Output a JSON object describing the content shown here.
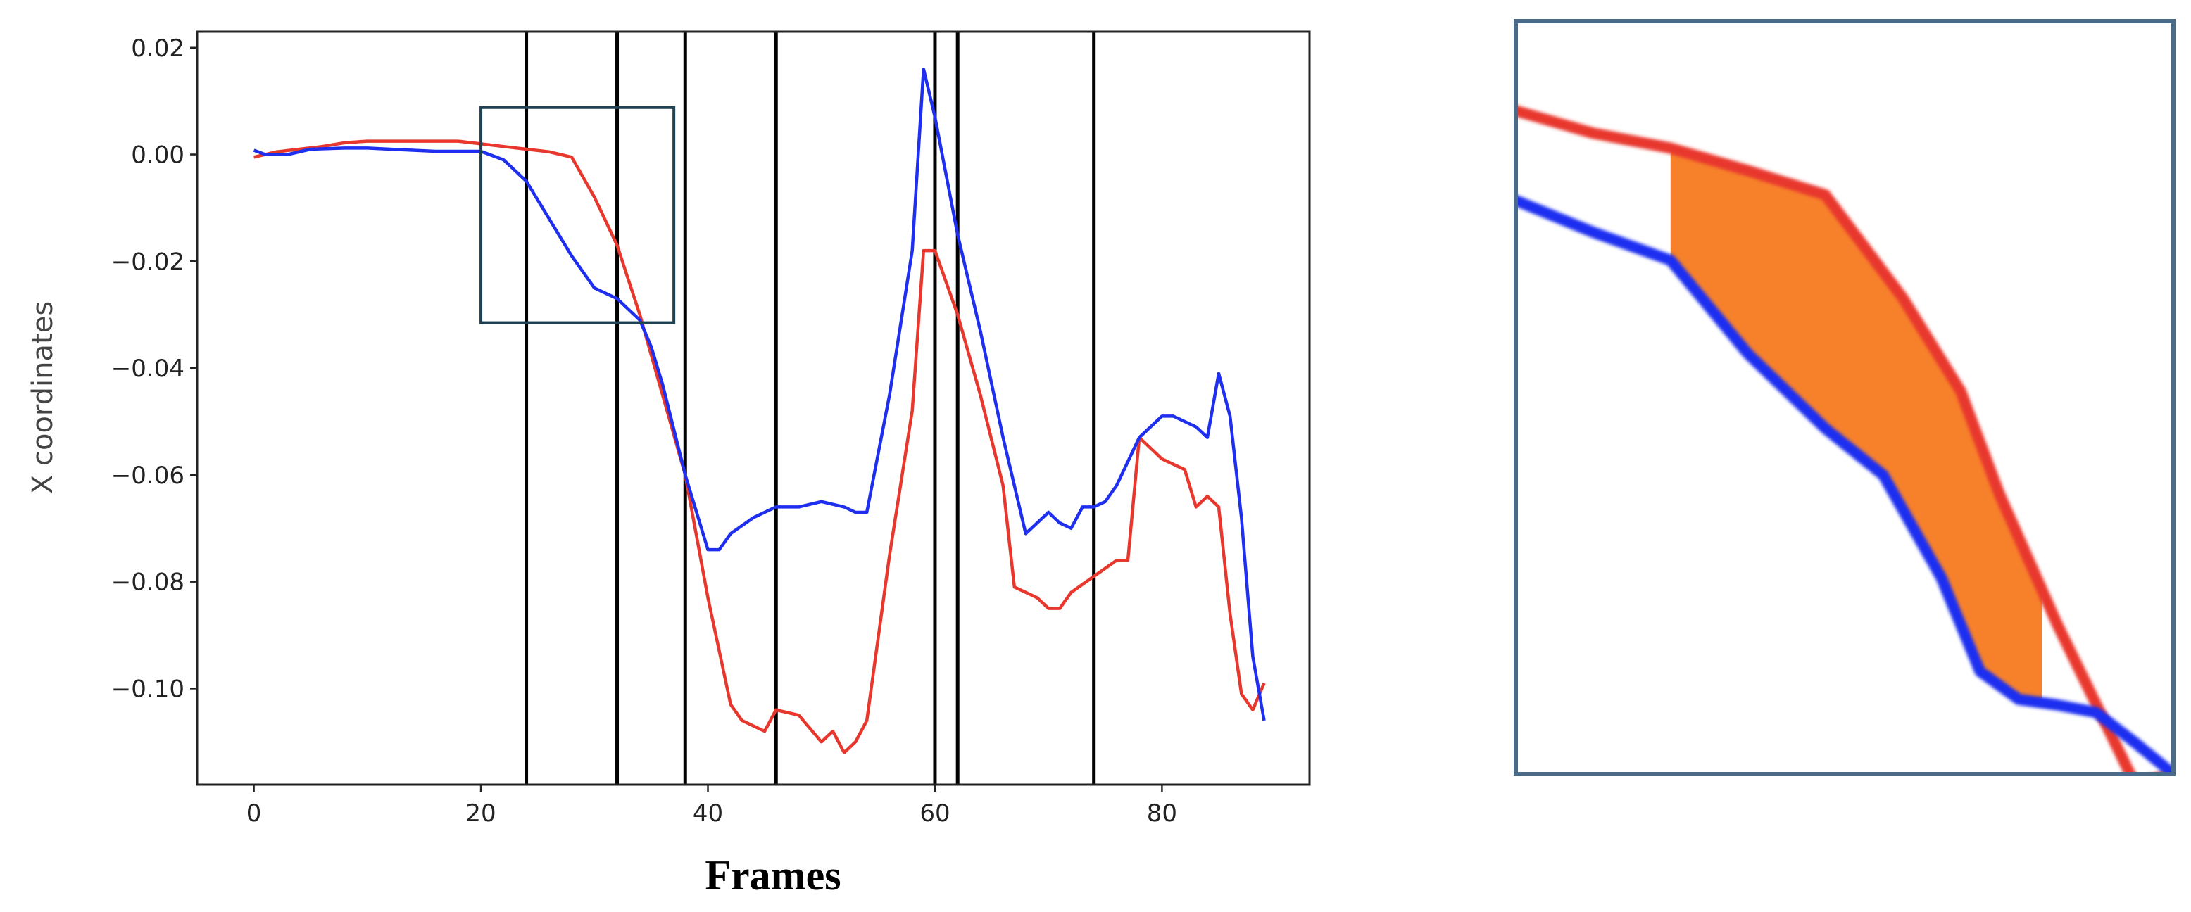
{
  "chart_data": [
    {
      "type": "line",
      "title": "",
      "xlabel": "Frames",
      "ylabel": "X coordinates",
      "xlim": [
        -5,
        93
      ],
      "ylim": [
        -0.118,
        0.023
      ],
      "xticks": [
        0,
        20,
        40,
        60,
        80
      ],
      "xtick_labels": [
        "0",
        "20",
        "40",
        "60",
        "80"
      ],
      "yticks": [
        0.02,
        0.0,
        -0.02,
        -0.04,
        -0.06,
        -0.08,
        -0.1
      ],
      "ytick_labels": [
        "0.02",
        "0.00",
        "−0.02",
        "−0.04",
        "−0.06",
        "−0.08",
        "−0.10"
      ],
      "grid": false,
      "legend": "none",
      "vertical_lines_x": [
        24,
        32,
        38,
        46,
        60,
        62,
        74
      ],
      "highlight_box": {
        "x": [
          20,
          37
        ],
        "y": [
          -0.0315,
          0.0088
        ]
      },
      "series": [
        {
          "color": "#e8382e",
          "x": [
            0,
            2,
            4,
            6,
            8,
            10,
            12,
            14,
            16,
            18,
            20,
            22,
            24,
            26,
            28,
            30,
            32,
            34,
            36,
            38,
            40,
            42,
            43,
            45,
            46,
            48,
            50,
            51,
            52,
            53,
            54,
            56,
            58,
            59,
            60,
            62,
            64,
            66,
            67,
            69,
            70,
            71,
            72,
            74,
            76,
            77,
            78,
            80,
            82,
            83,
            84,
            85,
            86,
            87,
            88,
            89
          ],
          "values": [
            -0.0005,
            0.0005,
            0.001,
            0.0015,
            0.0022,
            0.0025,
            0.0025,
            0.0025,
            0.0025,
            0.0025,
            0.002,
            0.0015,
            0.001,
            0.0005,
            -0.0005,
            -0.008,
            -0.017,
            -0.03,
            -0.045,
            -0.06,
            -0.083,
            -0.103,
            -0.106,
            -0.108,
            -0.104,
            -0.105,
            -0.11,
            -0.108,
            -0.112,
            -0.11,
            -0.106,
            -0.075,
            -0.048,
            -0.018,
            -0.018,
            -0.03,
            -0.045,
            -0.062,
            -0.081,
            -0.083,
            -0.085,
            -0.085,
            -0.082,
            -0.079,
            -0.076,
            -0.076,
            -0.053,
            -0.057,
            -0.059,
            -0.066,
            -0.064,
            -0.066,
            -0.086,
            -0.101,
            -0.104,
            -0.099
          ]
        },
        {
          "color": "#1e2ff0",
          "x": [
            0,
            1,
            3,
            5,
            8,
            10,
            12,
            14,
            16,
            18,
            20,
            22,
            24,
            26,
            28,
            30,
            32,
            34,
            35,
            36,
            38,
            40,
            41,
            42,
            44,
            46,
            48,
            50,
            52,
            53,
            54,
            56,
            58,
            59,
            60,
            62,
            64,
            66,
            68,
            69,
            70,
            71,
            72,
            73,
            74,
            75,
            76,
            78,
            80,
            81,
            82,
            83,
            84,
            85,
            86,
            87,
            88,
            89
          ],
          "values": [
            0.0008,
            0.0,
            0.0,
            0.001,
            0.0012,
            0.0012,
            0.001,
            0.0008,
            0.0006,
            0.0006,
            0.0006,
            -0.001,
            -0.005,
            -0.012,
            -0.019,
            -0.025,
            -0.027,
            -0.031,
            -0.036,
            -0.043,
            -0.06,
            -0.074,
            -0.074,
            -0.071,
            -0.068,
            -0.066,
            -0.066,
            -0.065,
            -0.066,
            -0.067,
            -0.067,
            -0.045,
            -0.018,
            0.016,
            0.007,
            -0.015,
            -0.033,
            -0.053,
            -0.071,
            -0.069,
            -0.067,
            -0.069,
            -0.07,
            -0.066,
            -0.066,
            -0.065,
            -0.062,
            -0.053,
            -0.049,
            -0.049,
            -0.05,
            -0.051,
            -0.053,
            -0.041,
            -0.049,
            -0.068,
            -0.094,
            -0.106
          ]
        }
      ]
    },
    {
      "type": "area",
      "title": "",
      "xlabel": "",
      "ylabel": "",
      "xlim": [
        20,
        37
      ],
      "ylim": [
        -0.0315,
        0.0088
      ],
      "grid": false,
      "legend": "none",
      "vertical_lines_x": [
        24,
        33.6
      ],
      "fill_color": "#f7812b",
      "fill_between_x": [
        24,
        33.6
      ],
      "series": [
        {
          "color": "#e8382e",
          "x": [
            20,
            22,
            24,
            26,
            28,
            30,
            31.5,
            32.5,
            34,
            36,
            37
          ],
          "values": [
            0.004,
            0.0028,
            0.002,
            0.0008,
            -0.0005,
            -0.006,
            -0.011,
            -0.0165,
            -0.0235,
            -0.032,
            -0.0315
          ]
        },
        {
          "color": "#1e2ff0",
          "x": [
            20,
            22,
            24,
            26,
            28,
            29.5,
            31,
            32,
            33,
            34,
            35,
            36,
            37
          ],
          "values": [
            -0.0008,
            -0.0025,
            -0.004,
            -0.009,
            -0.013,
            -0.0155,
            -0.021,
            -0.026,
            -0.0275,
            -0.0278,
            -0.0282,
            -0.0298,
            -0.0315
          ]
        }
      ]
    }
  ]
}
